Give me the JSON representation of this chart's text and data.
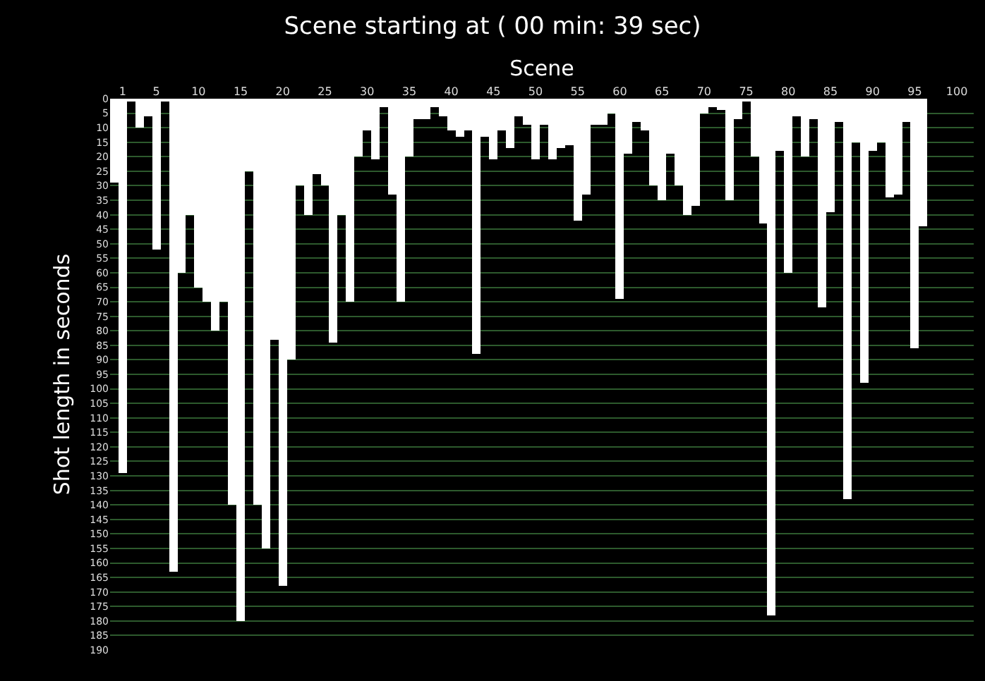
{
  "chart_data": {
    "type": "bar",
    "title": "Scene starting at ( 00 min: 39 sec)",
    "xlabel": "Scene",
    "ylabel": "Shot length in seconds",
    "x": [
      0,
      1,
      2,
      3,
      4,
      5,
      6,
      7,
      8,
      9,
      10,
      11,
      12,
      13,
      14,
      15,
      16,
      17,
      18,
      19,
      20,
      21,
      22,
      23,
      24,
      25,
      26,
      27,
      28,
      29,
      30,
      31,
      32,
      33,
      34,
      35,
      36,
      37,
      38,
      39,
      40,
      41,
      42,
      43,
      44,
      45,
      46,
      47,
      48,
      49,
      50,
      51,
      52,
      53,
      54,
      55,
      56,
      57,
      58,
      59,
      60,
      61,
      62,
      63,
      64,
      65,
      66,
      67,
      68,
      69,
      70,
      71,
      72,
      73,
      74,
      75,
      76,
      77,
      78,
      79,
      80,
      81,
      82,
      83,
      84,
      85,
      86,
      87,
      88,
      89,
      90,
      91,
      92,
      93,
      94,
      95,
      96
    ],
    "values": [
      29,
      129,
      1,
      10,
      6,
      52,
      1,
      163,
      60,
      40,
      65,
      70,
      80,
      70,
      140,
      180,
      25,
      140,
      155,
      83,
      168,
      90,
      30,
      40,
      26,
      30,
      84,
      40,
      70,
      20,
      11,
      21,
      3,
      33,
      70,
      20,
      7,
      7,
      3,
      6,
      11,
      13,
      11,
      88,
      13,
      21,
      11,
      17,
      6,
      9,
      21,
      9,
      21,
      17,
      16,
      42,
      33,
      9,
      9,
      5,
      69,
      19,
      8,
      11,
      30,
      35,
      19,
      30,
      40,
      37,
      5,
      3,
      4,
      35,
      7,
      1,
      20,
      43,
      178,
      18,
      60,
      6,
      20,
      7,
      72,
      39,
      8,
      138,
      15,
      98,
      18,
      15,
      34,
      33,
      8,
      86,
      44
    ],
    "color": "#ffffff",
    "xlim": [
      -0.5,
      102
    ],
    "xticks": [
      1,
      5,
      10,
      15,
      20,
      25,
      30,
      35,
      40,
      45,
      50,
      55,
      60,
      65,
      70,
      75,
      80,
      85,
      90,
      95,
      100
    ],
    "ylim": [
      190,
      0
    ],
    "yticks": [
      0,
      5,
      10,
      15,
      20,
      25,
      30,
      35,
      40,
      45,
      50,
      55,
      60,
      65,
      70,
      75,
      80,
      85,
      90,
      95,
      100,
      105,
      110,
      115,
      120,
      125,
      130,
      135,
      140,
      145,
      150,
      155,
      160,
      165,
      170,
      175,
      180,
      185,
      190
    ],
    "grid": "y"
  }
}
